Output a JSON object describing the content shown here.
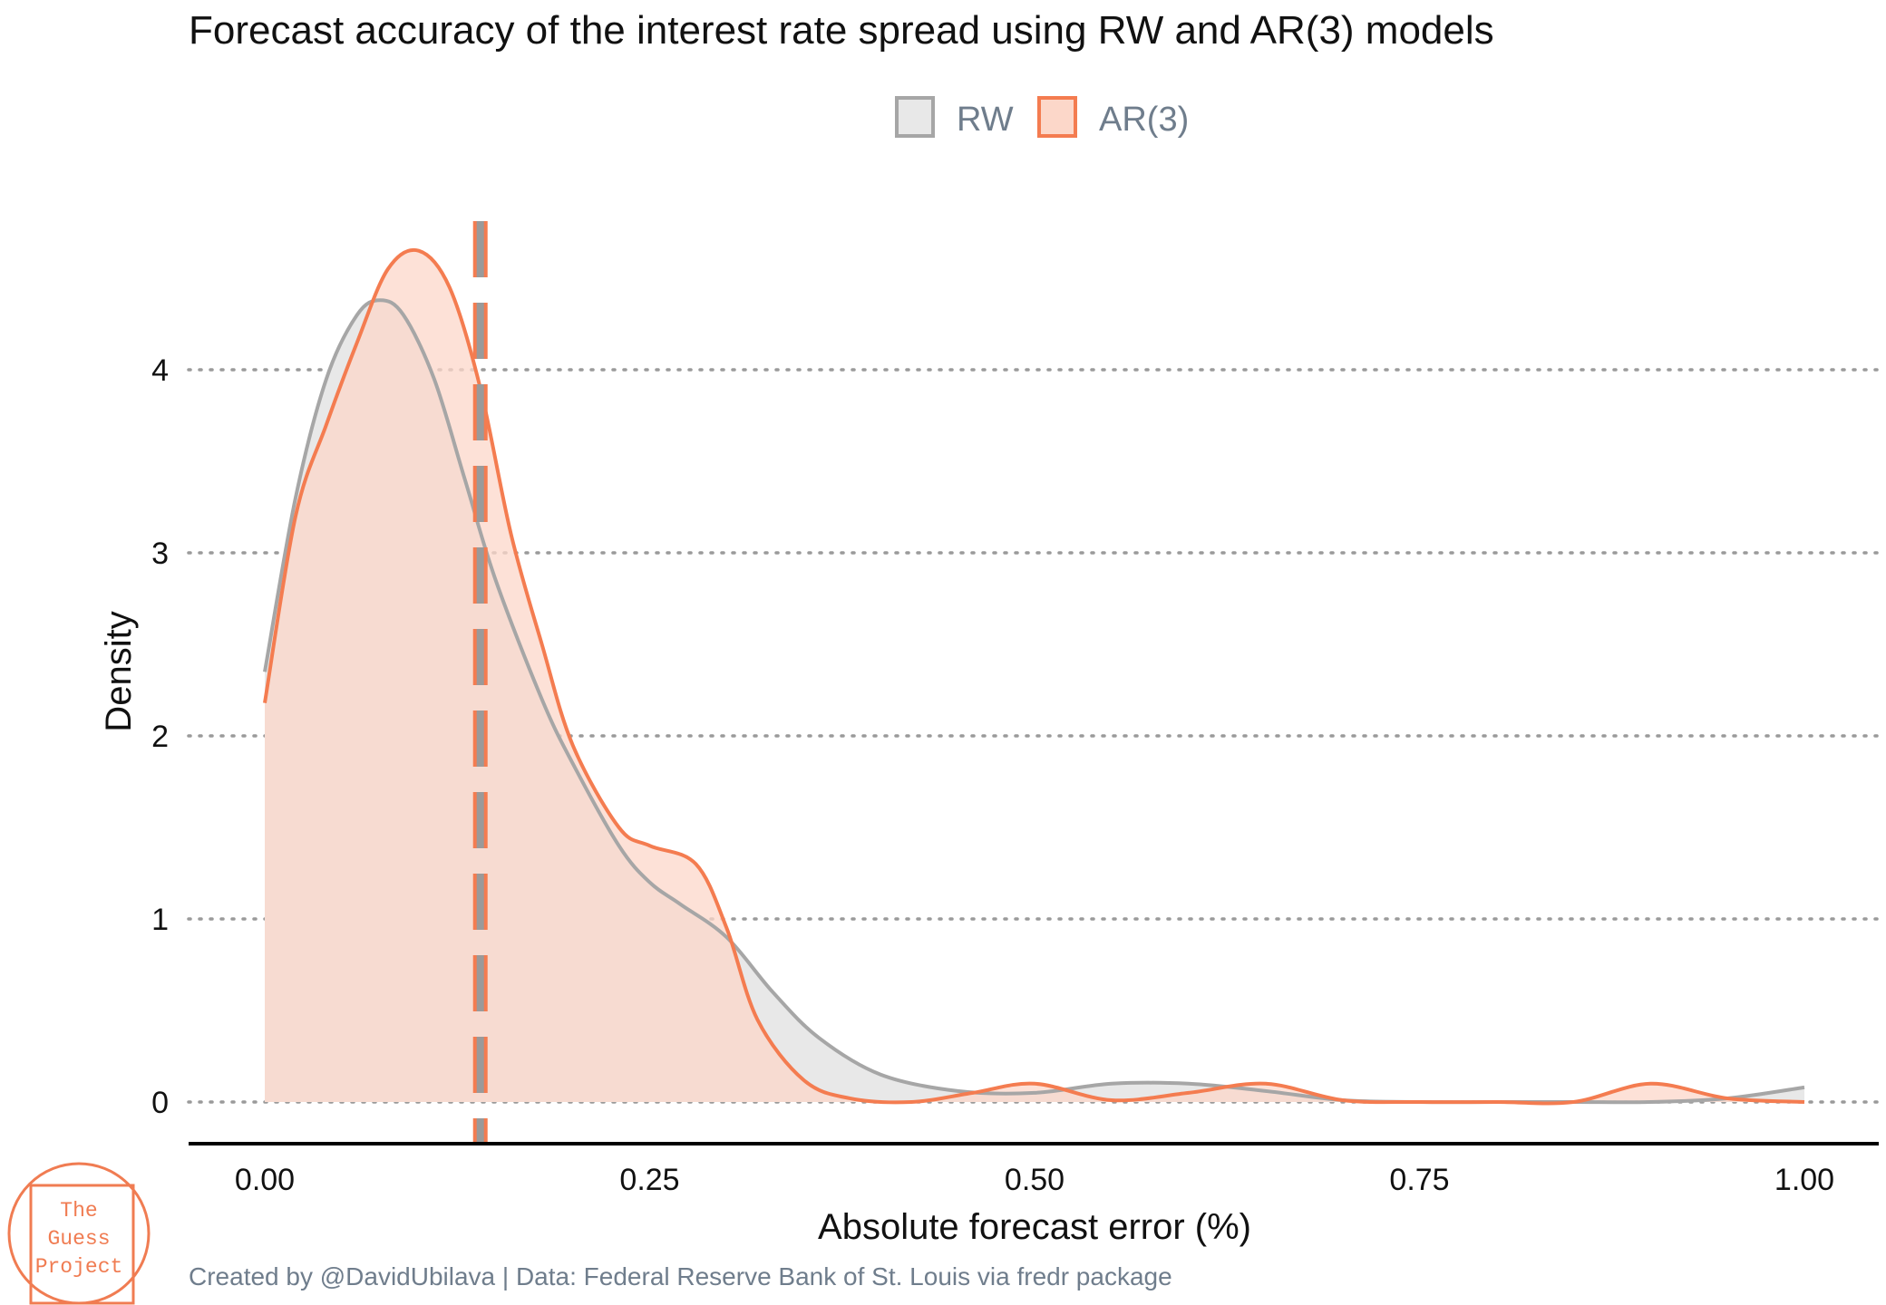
{
  "chart_data": {
    "type": "area",
    "title": "Forecast accuracy of the interest rate spread using RW and AR(3) models",
    "xlabel": "Absolute forecast error (%)",
    "ylabel": "Density",
    "xlim": [
      0.0,
      1.0
    ],
    "ylim": [
      0,
      4.75
    ],
    "x_ticks": [
      "0.00",
      "0.25",
      "0.50",
      "0.75",
      "1.00"
    ],
    "y_ticks": [
      "0",
      "1",
      "2",
      "3",
      "4"
    ],
    "grid": "horizontal dotted",
    "legend": "top",
    "reference_line": {
      "style": "dashed",
      "x": 0.14
    },
    "series": [
      {
        "name": "RW",
        "color": "#a6a6a6",
        "fill": "#e8e8e8",
        "x": [
          0.0,
          0.02,
          0.04,
          0.06,
          0.075,
          0.09,
          0.11,
          0.13,
          0.15,
          0.18,
          0.2,
          0.23,
          0.25,
          0.27,
          0.3,
          0.33,
          0.36,
          0.4,
          0.45,
          0.5,
          0.55,
          0.6,
          0.65,
          0.7,
          0.75,
          0.8,
          0.85,
          0.9,
          0.95,
          1.0
        ],
        "y": [
          2.35,
          3.3,
          3.95,
          4.3,
          4.38,
          4.3,
          3.95,
          3.4,
          2.85,
          2.2,
          1.85,
          1.4,
          1.2,
          1.08,
          0.9,
          0.6,
          0.35,
          0.15,
          0.06,
          0.05,
          0.1,
          0.1,
          0.06,
          0.01,
          0.0,
          0.0,
          0.0,
          0.0,
          0.02,
          0.08
        ]
      },
      {
        "name": "AR(3)",
        "color": "#f47c50",
        "fill": "#fcd7c9",
        "x": [
          0.0,
          0.02,
          0.04,
          0.06,
          0.08,
          0.1,
          0.12,
          0.14,
          0.16,
          0.18,
          0.2,
          0.23,
          0.25,
          0.28,
          0.3,
          0.32,
          0.35,
          0.38,
          0.42,
          0.46,
          0.5,
          0.55,
          0.6,
          0.65,
          0.7,
          0.75,
          0.8,
          0.85,
          0.9,
          0.95,
          1.0
        ],
        "y": [
          2.18,
          3.2,
          3.7,
          4.15,
          4.55,
          4.65,
          4.45,
          3.9,
          3.1,
          2.5,
          1.95,
          1.5,
          1.4,
          1.3,
          0.95,
          0.45,
          0.12,
          0.02,
          0.0,
          0.05,
          0.1,
          0.01,
          0.05,
          0.1,
          0.01,
          0.0,
          0.0,
          0.0,
          0.1,
          0.02,
          0.0
        ]
      }
    ]
  },
  "caption": "Created by @DavidUbilava | Data: Federal Reserve Bank of St. Louis via fredr package",
  "logo": {
    "lines": [
      "The",
      "Guess",
      "Project"
    ],
    "color": "#f07c52"
  }
}
